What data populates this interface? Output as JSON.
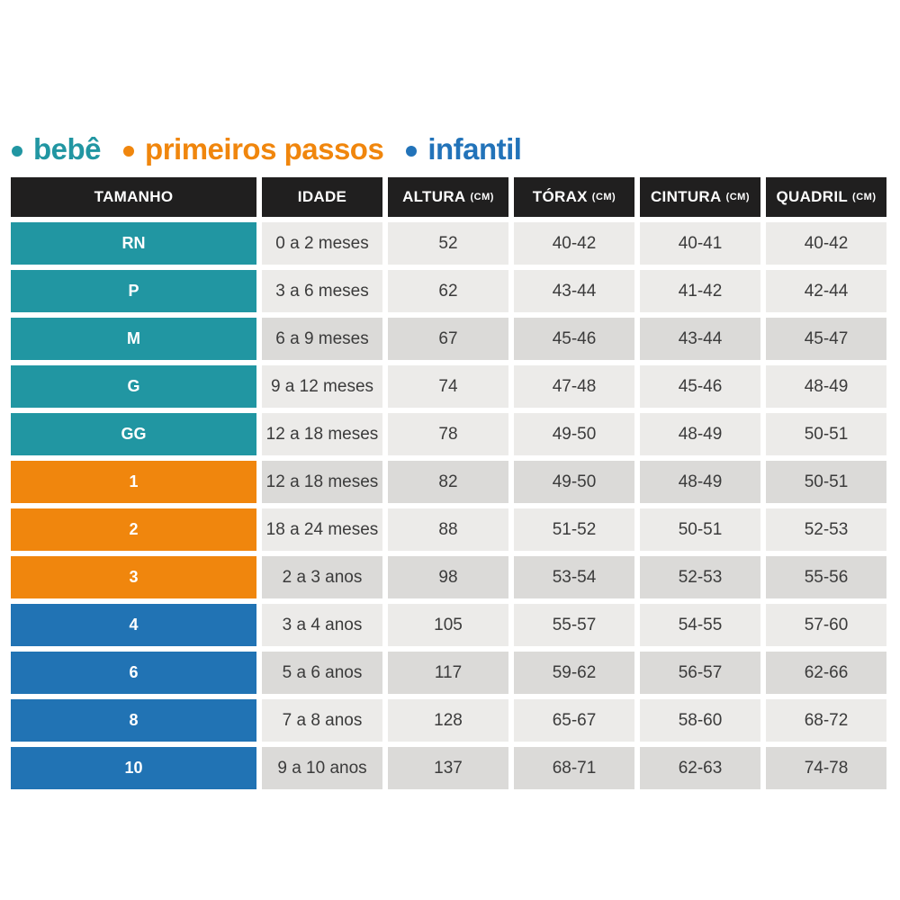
{
  "legend": {
    "items": [
      {
        "label": "bebê",
        "color": "#2196a2"
      },
      {
        "label": "primeiros passos",
        "color": "#f0860d"
      },
      {
        "label": "infantil",
        "color": "#2273b9"
      }
    ]
  },
  "table": {
    "headers": [
      {
        "label": "TAMANHO",
        "unit": ""
      },
      {
        "label": "IDADE",
        "unit": ""
      },
      {
        "label": "ALTURA",
        "unit": "(CM)"
      },
      {
        "label": "TÓRAX",
        "unit": "(CM)"
      },
      {
        "label": "CINTURA",
        "unit": "(CM)"
      },
      {
        "label": "QUADRIL",
        "unit": "(CM)"
      }
    ],
    "colors": {
      "header_bg": "#201f1f",
      "header_text": "#ffffff",
      "cell_light": "#ecebe9",
      "cell_dark": "#dbdad8",
      "cell_text": "#3b3b3b",
      "size_text": "#ffffff",
      "group_bebe": "#2196a2",
      "group_primeiros_passos": "#f0860d",
      "group_infantil": "#2173b4"
    },
    "rows": [
      {
        "size": "RN",
        "group": "bebe",
        "shade": "light",
        "idade": "0 a 2 meses",
        "altura": "52",
        "torax": "40-42",
        "cintura": "40-41",
        "quadril": "40-42"
      },
      {
        "size": "P",
        "group": "bebe",
        "shade": "light",
        "idade": "3 a 6 meses",
        "altura": "62",
        "torax": "43-44",
        "cintura": "41-42",
        "quadril": "42-44"
      },
      {
        "size": "M",
        "group": "bebe",
        "shade": "dark",
        "idade": "6 a 9 meses",
        "altura": "67",
        "torax": "45-46",
        "cintura": "43-44",
        "quadril": "45-47"
      },
      {
        "size": "G",
        "group": "bebe",
        "shade": "light",
        "idade": "9 a 12 meses",
        "altura": "74",
        "torax": "47-48",
        "cintura": "45-46",
        "quadril": "48-49"
      },
      {
        "size": "GG",
        "group": "bebe",
        "shade": "light",
        "idade": "12 a 18 meses",
        "altura": "78",
        "torax": "49-50",
        "cintura": "48-49",
        "quadril": "50-51"
      },
      {
        "size": "1",
        "group": "primeiros_passos",
        "shade": "dark",
        "idade": "12 a 18 meses",
        "altura": "82",
        "torax": "49-50",
        "cintura": "48-49",
        "quadril": "50-51"
      },
      {
        "size": "2",
        "group": "primeiros_passos",
        "shade": "light",
        "idade": "18 a 24 meses",
        "altura": "88",
        "torax": "51-52",
        "cintura": "50-51",
        "quadril": "52-53"
      },
      {
        "size": "3",
        "group": "primeiros_passos",
        "shade": "dark",
        "idade": "2 a 3 anos",
        "altura": "98",
        "torax": "53-54",
        "cintura": "52-53",
        "quadril": "55-56"
      },
      {
        "size": "4",
        "group": "infantil",
        "shade": "light",
        "idade": "3 a 4 anos",
        "altura": "105",
        "torax": "55-57",
        "cintura": "54-55",
        "quadril": "57-60"
      },
      {
        "size": "6",
        "group": "infantil",
        "shade": "dark",
        "idade": "5 a 6 anos",
        "altura": "117",
        "torax": "59-62",
        "cintura": "56-57",
        "quadril": "62-66"
      },
      {
        "size": "8",
        "group": "infantil",
        "shade": "light",
        "idade": "7 a 8 anos",
        "altura": "128",
        "torax": "65-67",
        "cintura": "58-60",
        "quadril": "68-72"
      },
      {
        "size": "10",
        "group": "infantil",
        "shade": "dark",
        "idade": "9 a 10 anos",
        "altura": "137",
        "torax": "68-71",
        "cintura": "62-63",
        "quadril": "74-78"
      }
    ]
  },
  "chart_data": {
    "type": "table",
    "title": "",
    "legend": [
      "bebê",
      "primeiros passos",
      "infantil"
    ],
    "legend_position": "top-left",
    "columns": [
      "TAMANHO",
      "IDADE",
      "ALTURA (CM)",
      "TÓRAX (CM)",
      "CINTURA (CM)",
      "QUADRIL (CM)"
    ],
    "rows": [
      [
        "RN",
        "0 a 2 meses",
        "52",
        "40-42",
        "40-41",
        "40-42"
      ],
      [
        "P",
        "3 a 6 meses",
        "62",
        "43-44",
        "41-42",
        "42-44"
      ],
      [
        "M",
        "6 a 9 meses",
        "67",
        "45-46",
        "43-44",
        "45-47"
      ],
      [
        "G",
        "9 a 12 meses",
        "74",
        "47-48",
        "45-46",
        "48-49"
      ],
      [
        "GG",
        "12 a 18 meses",
        "78",
        "49-50",
        "48-49",
        "50-51"
      ],
      [
        "1",
        "12 a 18 meses",
        "82",
        "49-50",
        "48-49",
        "50-51"
      ],
      [
        "2",
        "18 a 24 meses",
        "88",
        "51-52",
        "50-51",
        "52-53"
      ],
      [
        "3",
        "2 a 3 anos",
        "98",
        "53-54",
        "52-53",
        "55-56"
      ],
      [
        "4",
        "3 a 4 anos",
        "105",
        "55-57",
        "54-55",
        "57-60"
      ],
      [
        "6",
        "5 a 6 anos",
        "117",
        "59-62",
        "56-57",
        "62-66"
      ],
      [
        "8",
        "7 a 8 anos",
        "128",
        "65-67",
        "58-60",
        "68-72"
      ],
      [
        "10",
        "9 a 10 anos",
        "137",
        "68-71",
        "62-63",
        "74-78"
      ]
    ],
    "row_groups": [
      "bebê",
      "bebê",
      "bebê",
      "bebê",
      "bebê",
      "primeiros passos",
      "primeiros passos",
      "primeiros passos",
      "infantil",
      "infantil",
      "infantil",
      "infantil"
    ]
  }
}
